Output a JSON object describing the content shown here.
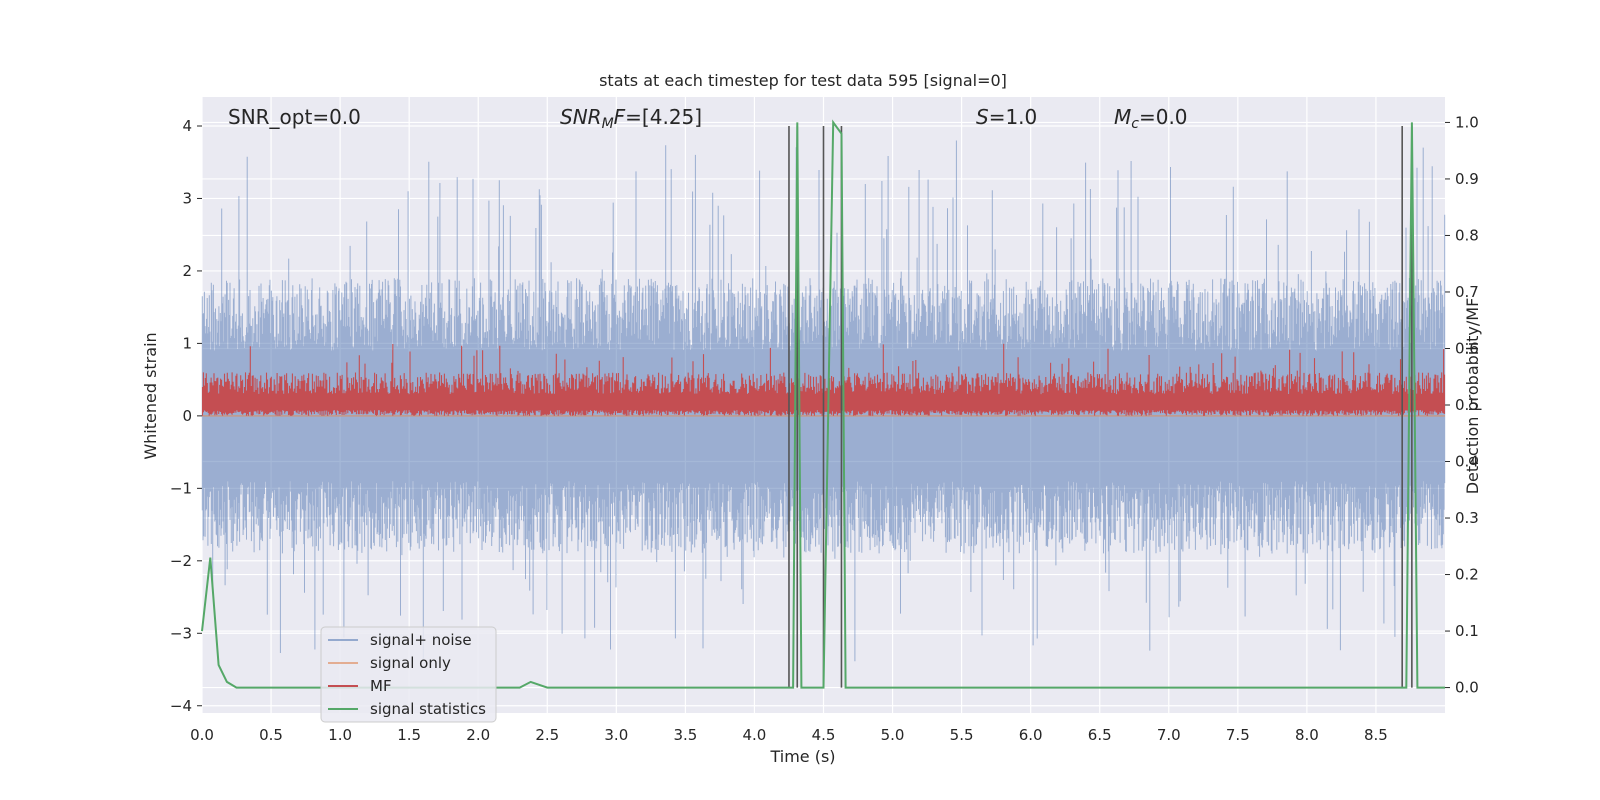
{
  "chart_data": {
    "type": "line",
    "title": "stats at each timestep for test data 595 [signal=0]",
    "xlabel": "Time (s)",
    "ylabel": "Whitened strain",
    "y2label": "Detection probability/MF",
    "xlim": [
      0.0,
      9.0
    ],
    "ylim": [
      -4.1,
      4.4
    ],
    "y2lim": [
      -0.045,
      1.045
    ],
    "x_ticks": [
      "0.0",
      "0.5",
      "1.0",
      "1.5",
      "2.0",
      "2.5",
      "3.0",
      "3.5",
      "4.0",
      "4.5",
      "5.0",
      "5.5",
      "6.0",
      "6.5",
      "7.0",
      "7.5",
      "8.0",
      "8.5"
    ],
    "y_ticks": [
      "4",
      "3",
      "2",
      "1",
      "0",
      "−1",
      "−2",
      "−3",
      "−4"
    ],
    "y2_ticks": [
      "1.0",
      "0.9",
      "0.8",
      "0.7",
      "0.6",
      "0.5",
      "0.4",
      "0.3",
      "0.2",
      "0.1",
      "0.0"
    ],
    "grid": true,
    "legend_position": "lower-left",
    "annotations": {
      "snr_opt": "SNR_opt=0.0",
      "snr_mf_sym": "SNR",
      "snr_mf_sub": "M",
      "snr_mf_sym2": "F",
      "snr_mf_val": "=[4.25]",
      "s_sym": "S",
      "s_val": "=1.0",
      "mc_sym": "M",
      "mc_sub": "c",
      "mc_val": "=0.0"
    },
    "series": [
      {
        "name": "signal+ noise",
        "color": "#4c72b0",
        "description_values": "whitened strain noise, roughly symmetric around 0, typical amplitude ±1.5, peaks up to ~4.0 and down to ~-3.7",
        "envelope": {
          "upper_typical": 1.6,
          "lower_typical": -1.6,
          "max": 4.0,
          "min": -3.7
        }
      },
      {
        "name": "signal only",
        "color": "#dd8452",
        "values_constant": 0.0
      },
      {
        "name": "MF",
        "color": "#c44e52",
        "envelope": {
          "baseline": 0.0,
          "typical_upper": 0.5,
          "max": 1.0
        }
      },
      {
        "name": "signal statistics",
        "color": "#55a868",
        "axis": "right",
        "x": [
          0.0,
          0.06,
          0.12,
          0.18,
          0.25,
          0.4,
          1.0,
          2.0,
          2.3,
          2.38,
          2.5,
          3.0,
          4.0,
          4.25,
          4.28,
          4.31,
          4.34,
          4.45,
          4.5,
          4.57,
          4.63,
          4.66,
          4.7,
          5.0,
          6.0,
          7.0,
          8.0,
          8.69,
          8.72,
          8.76,
          8.8,
          8.85,
          9.0
        ],
        "values": [
          0.1,
          0.23,
          0.04,
          0.01,
          0.0,
          0.0,
          0.0,
          0.0,
          0.0,
          0.01,
          0.0,
          0.0,
          0.0,
          0.0,
          0.0,
          1.0,
          0.0,
          0.0,
          0.0,
          1.0,
          0.98,
          0.0,
          0.0,
          0.0,
          0.0,
          0.0,
          0.0,
          0.0,
          0.0,
          1.0,
          0.0,
          0.0,
          0.0
        ]
      }
    ],
    "vertical_markers": {
      "color": "#555555",
      "x": [
        4.25,
        4.31,
        4.5,
        4.63,
        8.69,
        8.76
      ],
      "y_top": 4.0
    }
  }
}
